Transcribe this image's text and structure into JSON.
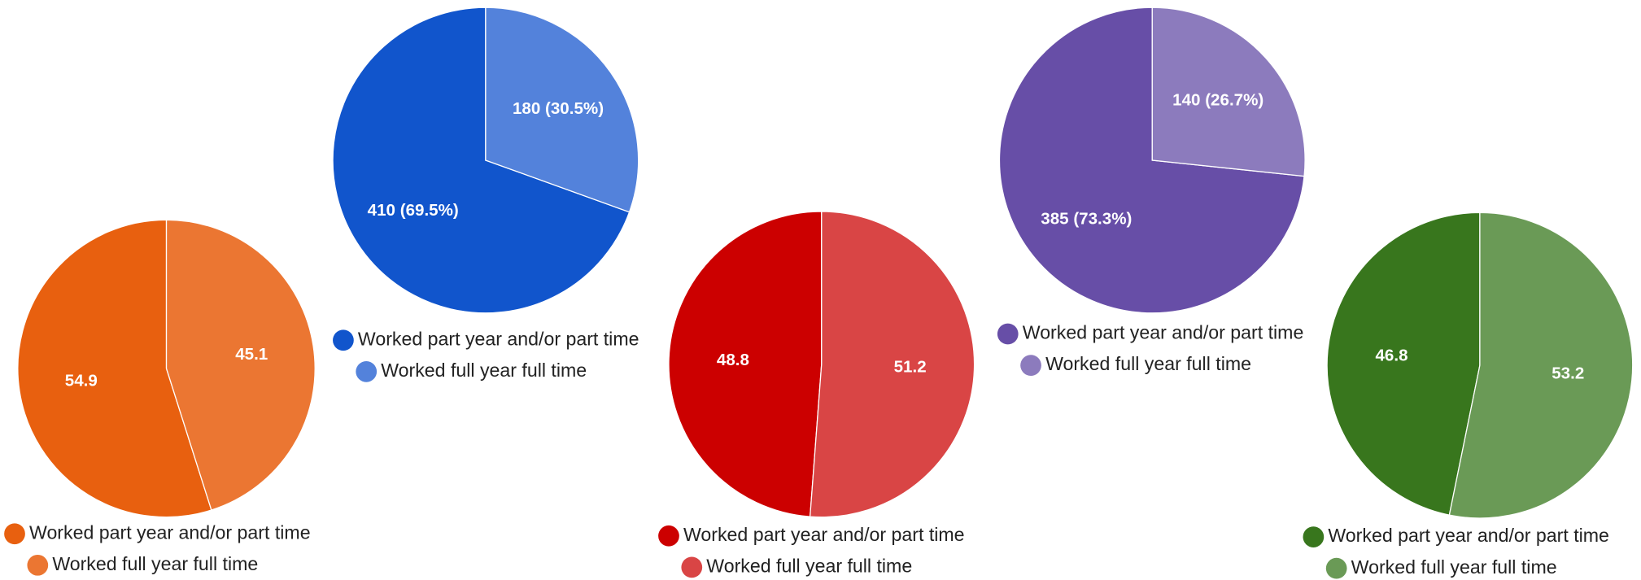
{
  "chart_data": [
    {
      "type": "pie",
      "categories": [
        "Worked part year and/or part time",
        "Worked full year full time"
      ],
      "values": [
        54.9,
        45.1
      ],
      "colors": [
        "#e8600f",
        "#eb7632"
      ]
    },
    {
      "type": "pie",
      "categories": [
        "Worked part year and/or part time",
        "Worked full year full time"
      ],
      "values": [
        410,
        180
      ],
      "value_labels": [
        "410 (69.5%)",
        "180 (30.5%)"
      ],
      "colors": [
        "#1155cc",
        "#5382db"
      ]
    },
    {
      "type": "pie",
      "categories": [
        "Worked part year and/or part time",
        "Worked full year full time"
      ],
      "values": [
        48.8,
        51.2
      ],
      "colors": [
        "#cc0000",
        "#d94545"
      ]
    },
    {
      "type": "pie",
      "categories": [
        "Worked part year and/or part time",
        "Worked full year full time"
      ],
      "values": [
        385,
        140
      ],
      "value_labels": [
        "385 (73.3%)",
        "140 (26.7%)"
      ],
      "colors": [
        "#674ea7",
        "#8c7bbd"
      ]
    },
    {
      "type": "pie",
      "categories": [
        "Worked part year and/or part time",
        "Worked full year full time"
      ],
      "values": [
        46.8,
        53.2
      ],
      "colors": [
        "#38761d",
        "#6a9a56"
      ]
    }
  ]
}
